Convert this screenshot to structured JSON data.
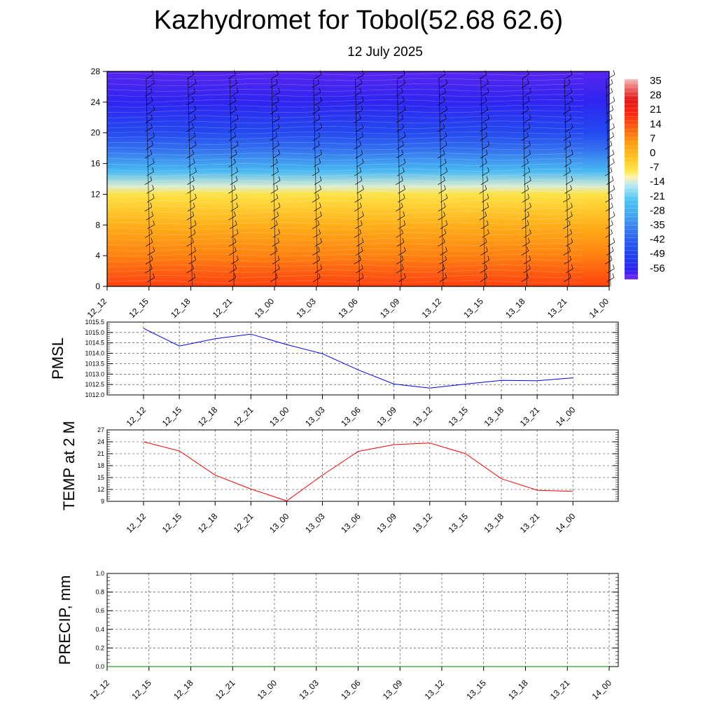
{
  "header": {
    "title": "Kazhydromet for Tobol(52.68 62.6)",
    "subtitle": "12 July 2025"
  },
  "chart_data": [
    {
      "type": "heatmap",
      "title": "",
      "x_labels": [
        "12_12",
        "12_15",
        "12_18",
        "12_21",
        "13_00",
        "13_03",
        "13_06",
        "13_09",
        "13_12",
        "13_15",
        "13_18",
        "13_21",
        "14_00"
      ],
      "y_ticks": [
        0,
        4,
        8,
        12,
        16,
        20,
        24,
        28
      ],
      "ylim": [
        0,
        28
      ],
      "colorbar_labels": [
        "35",
        "28",
        "21",
        "14",
        "7",
        "0",
        "-7",
        "-14",
        "-21",
        "-28",
        "-35",
        "-42",
        "-49",
        "-56"
      ],
      "colorbar_range": [
        -60,
        38
      ],
      "temperature_profile": [
        {
          "level": 0,
          "value": 18
        },
        {
          "level": 4,
          "value": 10
        },
        {
          "level": 8,
          "value": 3
        },
        {
          "level": 12,
          "value": -6
        },
        {
          "level": 13,
          "value": -12
        },
        {
          "level": 15,
          "value": -24
        },
        {
          "level": 18,
          "value": -38
        },
        {
          "level": 20,
          "value": -46
        },
        {
          "level": 24,
          "value": -55
        },
        {
          "level": 28,
          "value": -58
        }
      ],
      "overlay": "wind barbs"
    },
    {
      "type": "line",
      "ylabel": "PMSL",
      "x_labels": [
        "12_12",
        "12_15",
        "12_18",
        "12_21",
        "13_00",
        "13_03",
        "13_06",
        "13_09",
        "13_12",
        "13_15",
        "13_18",
        "13_21",
        "14_00"
      ],
      "y_ticks": [
        "1015.5",
        "1015.0",
        "1014.5",
        "1014.0",
        "1013.5",
        "1013.0",
        "1012.5",
        "1012.0"
      ],
      "ylim": [
        1012.0,
        1015.5
      ],
      "series": [
        {
          "color": "#0000ff",
          "values": [
            1015.2,
            1014.35,
            1014.7,
            1014.92,
            1014.42,
            1013.98,
            1013.2,
            1012.52,
            1012.33,
            1012.52,
            1012.7,
            1012.68,
            1012.82
          ]
        }
      ]
    },
    {
      "type": "line",
      "ylabel": "TEMP at 2 M",
      "x_labels": [
        "12_12",
        "12_15",
        "12_18",
        "12_21",
        "13_00",
        "13_03",
        "13_06",
        "13_09",
        "13_12",
        "13_15",
        "13_18",
        "13_21",
        "14_00"
      ],
      "y_ticks": [
        "27",
        "24",
        "21",
        "18",
        "15",
        "12",
        "9"
      ],
      "ylim": [
        9,
        27
      ],
      "series": [
        {
          "color": "#ff0000",
          "values": [
            24.0,
            21.7,
            15.6,
            12.1,
            9.1,
            15.6,
            21.6,
            23.3,
            23.7,
            21.0,
            14.7,
            11.8,
            11.5
          ]
        }
      ]
    },
    {
      "type": "line",
      "ylabel": "PRECIP, mm",
      "x_labels": [
        "12_12",
        "12_15",
        "12_18",
        "12_21",
        "13_00",
        "13_03",
        "13_06",
        "13_09",
        "13_12",
        "13_15",
        "13_18",
        "13_21",
        "14_00"
      ],
      "y_ticks": [
        "1.0",
        "0.8",
        "0.6",
        "0.4",
        "0.2",
        "0.0"
      ],
      "ylim": [
        0.0,
        1.0
      ],
      "series": [
        {
          "color": "#008000",
          "values": [
            0,
            0,
            0,
            0,
            0,
            0,
            0,
            0,
            0,
            0,
            0,
            0,
            0
          ]
        }
      ]
    }
  ]
}
